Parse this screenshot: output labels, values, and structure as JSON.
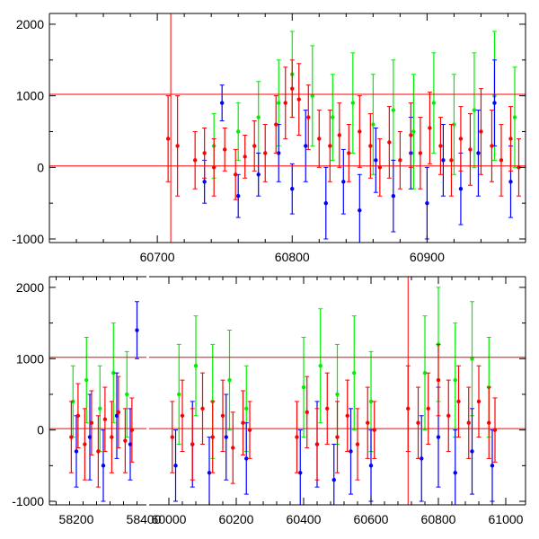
{
  "chart_data": [
    {
      "type": "scatter",
      "panel": "top",
      "title": "",
      "xlabel": "",
      "ylabel": "",
      "xlim": [
        60620,
        60973
      ],
      "ylim": [
        -1050,
        2150
      ],
      "x_ticks": [
        "60700",
        "60800",
        "60900"
      ],
      "x_tick_values": [
        60700,
        60800,
        60900
      ],
      "y_ticks": [
        "-1000",
        "0",
        "1000",
        "2000"
      ],
      "y_tick_values": [
        -1000,
        0,
        1000,
        2000
      ],
      "reference_lines": {
        "horizontal": [
          1020,
          20
        ],
        "vertical": [
          60710
        ]
      },
      "series": [
        {
          "name": "green",
          "color": "#00ee00",
          "points": [
            [
              60742,
              300,
              450
            ],
            [
              60760,
              500,
              400
            ],
            [
              60775,
              700,
              500
            ],
            [
              60790,
              900,
              600
            ],
            [
              60800,
              1300,
              600
            ],
            [
              60815,
              1000,
              700
            ],
            [
              60830,
              700,
              600
            ],
            [
              60845,
              900,
              700
            ],
            [
              60860,
              600,
              700
            ],
            [
              60875,
              800,
              700
            ],
            [
              60890,
              500,
              800
            ],
            [
              60905,
              900,
              700
            ],
            [
              60920,
              600,
              700
            ],
            [
              60935,
              800,
              800
            ],
            [
              60950,
              1000,
              900
            ],
            [
              60965,
              700,
              700
            ]
          ]
        },
        {
          "name": "blue",
          "color": "#0000ff",
          "points": [
            [
              60735,
              -200,
              300
            ],
            [
              60748,
              900,
              250
            ],
            [
              60760,
              -400,
              300
            ],
            [
              60775,
              -100,
              300
            ],
            [
              60790,
              200,
              400
            ],
            [
              60800,
              -300,
              350
            ],
            [
              60810,
              300,
              500
            ],
            [
              60825,
              -500,
              500
            ],
            [
              60838,
              -200,
              450
            ],
            [
              60850,
              -600,
              500
            ],
            [
              60862,
              100,
              450
            ],
            [
              60875,
              -400,
              500
            ],
            [
              60888,
              200,
              500
            ],
            [
              60900,
              -500,
              500
            ],
            [
              60912,
              100,
              500
            ],
            [
              60925,
              -300,
              500
            ],
            [
              60938,
              200,
              600
            ],
            [
              60950,
              900,
              600
            ],
            [
              60962,
              -200,
              500
            ]
          ]
        },
        {
          "name": "red",
          "color": "#ff0000",
          "points": [
            [
              60708,
              400,
              600
            ],
            [
              60715,
              300,
              700
            ],
            [
              60728,
              100,
              400
            ],
            [
              60735,
              200,
              350
            ],
            [
              60742,
              0,
              400
            ],
            [
              60750,
              250,
              300
            ],
            [
              60758,
              -100,
              350
            ],
            [
              60765,
              150,
              300
            ],
            [
              60772,
              300,
              350
            ],
            [
              60780,
              200,
              400
            ],
            [
              60788,
              600,
              400
            ],
            [
              60795,
              900,
              500
            ],
            [
              60800,
              1100,
              400
            ],
            [
              60805,
              950,
              500
            ],
            [
              60812,
              700,
              450
            ],
            [
              60820,
              400,
              400
            ],
            [
              60828,
              300,
              500
            ],
            [
              60835,
              450,
              450
            ],
            [
              60842,
              200,
              400
            ],
            [
              60850,
              500,
              500
            ],
            [
              60858,
              300,
              450
            ],
            [
              60865,
              0,
              400
            ],
            [
              60872,
              350,
              500
            ],
            [
              60880,
              100,
              400
            ],
            [
              60888,
              450,
              450
            ],
            [
              60895,
              200,
              500
            ],
            [
              60902,
              550,
              500
            ],
            [
              60910,
              300,
              400
            ],
            [
              60918,
              100,
              500
            ],
            [
              60925,
              400,
              450
            ],
            [
              60932,
              250,
              500
            ],
            [
              60940,
              500,
              600
            ],
            [
              60948,
              300,
              500
            ],
            [
              60955,
              100,
              500
            ],
            [
              60962,
              400,
              450
            ],
            [
              60968,
              0,
              400
            ]
          ]
        }
      ]
    },
    {
      "type": "scatter",
      "panel": "bottom",
      "title": "",
      "xlabel": "",
      "ylabel": "",
      "broken_axis": [
        [
          58120,
          58410
        ],
        [
          59940,
          61060
        ]
      ],
      "ylim": [
        -1050,
        2150
      ],
      "x_ticks": [
        "58200",
        "58400",
        "60000",
        "60200",
        "60400",
        "60600",
        "60800",
        "61000"
      ],
      "x_tick_values": [
        58200,
        58400,
        60000,
        60200,
        60400,
        60600,
        60800,
        61000
      ],
      "y_ticks": [
        "-1000",
        "0",
        "1000",
        "2000"
      ],
      "y_tick_values": [
        -1000,
        0,
        1000,
        2000
      ],
      "reference_lines": {
        "horizontal": [
          1020,
          20
        ],
        "vertical": [
          60710
        ]
      },
      "series": [
        {
          "name": "green",
          "color": "#00ee00",
          "points": [
            [
              58190,
              400,
              500
            ],
            [
              58230,
              700,
              600
            ],
            [
              58270,
              300,
              600
            ],
            [
              58310,
              800,
              700
            ],
            [
              58350,
              500,
              600
            ],
            [
              60030,
              500,
              700
            ],
            [
              60080,
              900,
              700
            ],
            [
              60130,
              400,
              800
            ],
            [
              60180,
              700,
              700
            ],
            [
              60230,
              300,
              600
            ],
            [
              60400,
              600,
              700
            ],
            [
              60450,
              900,
              800
            ],
            [
              60500,
              500,
              700
            ],
            [
              60550,
              800,
              800
            ],
            [
              60600,
              400,
              700
            ],
            [
              60760,
              800,
              800
            ],
            [
              60800,
              1200,
              800
            ],
            [
              60850,
              700,
              800
            ],
            [
              60900,
              1000,
              800
            ],
            [
              60950,
              600,
              700
            ]
          ]
        },
        {
          "name": "blue",
          "color": "#0000ff",
          "points": [
            [
              58200,
              -300,
              500
            ],
            [
              58240,
              -100,
              600
            ],
            [
              58280,
              -500,
              500
            ],
            [
              58320,
              200,
              600
            ],
            [
              58360,
              -200,
              500
            ],
            [
              58380,
              1400,
              400
            ],
            [
              60020,
              -500,
              500
            ],
            [
              60070,
              -200,
              600
            ],
            [
              60120,
              -600,
              500
            ],
            [
              60170,
              -100,
              600
            ],
            [
              60230,
              -400,
              500
            ],
            [
              60390,
              -600,
              600
            ],
            [
              60440,
              -200,
              600
            ],
            [
              60490,
              -700,
              500
            ],
            [
              60540,
              -300,
              600
            ],
            [
              60600,
              -500,
              500
            ],
            [
              60750,
              -400,
              600
            ],
            [
              60800,
              -100,
              700
            ],
            [
              60850,
              -600,
              600
            ],
            [
              60900,
              -300,
              600
            ],
            [
              60960,
              -500,
              500
            ]
          ]
        },
        {
          "name": "red",
          "color": "#ff0000",
          "points": [
            [
              58185,
              -100,
              500
            ],
            [
              58205,
              200,
              450
            ],
            [
              58225,
              -200,
              500
            ],
            [
              58245,
              100,
              450
            ],
            [
              58265,
              -300,
              500
            ],
            [
              58285,
              150,
              450
            ],
            [
              58305,
              -100,
              500
            ],
            [
              58325,
              250,
              500
            ],
            [
              58345,
              -150,
              450
            ],
            [
              58365,
              0,
              450
            ],
            [
              60010,
              -100,
              500
            ],
            [
              60040,
              200,
              500
            ],
            [
              60070,
              -200,
              500
            ],
            [
              60100,
              300,
              500
            ],
            [
              60130,
              -100,
              500
            ],
            [
              60160,
              200,
              500
            ],
            [
              60190,
              -250,
              500
            ],
            [
              60220,
              100,
              450
            ],
            [
              60240,
              0,
              400
            ],
            [
              60380,
              -100,
              500
            ],
            [
              60410,
              250,
              500
            ],
            [
              60440,
              -200,
              500
            ],
            [
              60470,
              300,
              500
            ],
            [
              60500,
              -100,
              500
            ],
            [
              60530,
              200,
              500
            ],
            [
              60560,
              -200,
              500
            ],
            [
              60590,
              100,
              500
            ],
            [
              60610,
              0,
              400
            ],
            [
              60710,
              300,
              600
            ],
            [
              60740,
              100,
              500
            ],
            [
              60770,
              300,
              500
            ],
            [
              60800,
              700,
              500
            ],
            [
              60830,
              200,
              500
            ],
            [
              60860,
              400,
              500
            ],
            [
              60890,
              100,
              500
            ],
            [
              60920,
              400,
              500
            ],
            [
              60950,
              100,
              500
            ],
            [
              60968,
              0,
              450
            ]
          ]
        }
      ]
    }
  ]
}
